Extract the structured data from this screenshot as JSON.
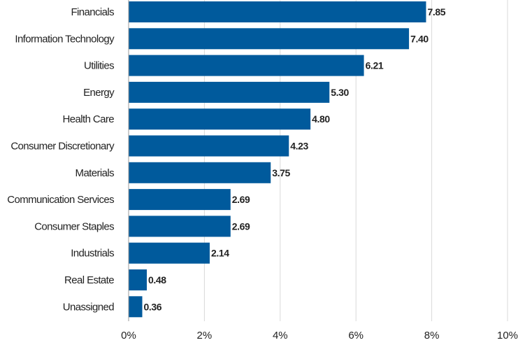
{
  "chart_data": {
    "type": "bar",
    "orientation": "horizontal",
    "categories": [
      "Financials",
      "Information Technology",
      "Utilities",
      "Energy",
      "Health Care",
      "Consumer Discretionary",
      "Materials",
      "Communication Services",
      "Consumer Staples",
      "Industrials",
      "Real Estate",
      "Unassigned"
    ],
    "values": [
      7.85,
      7.4,
      6.21,
      5.3,
      4.8,
      4.23,
      3.75,
      2.69,
      2.69,
      2.14,
      0.48,
      0.36
    ],
    "value_labels": [
      "7.85",
      "7.40",
      "6.21",
      "5.30",
      "4.80",
      "4.23",
      "3.75",
      "2.69",
      "2.69",
      "2.14",
      "0.48",
      "0.36"
    ],
    "xlim": [
      0,
      10
    ],
    "x_ticks": [
      0,
      2,
      4,
      6,
      8,
      10
    ],
    "x_tick_labels": [
      "0%",
      "2%",
      "4%",
      "6%",
      "8%",
      "10%"
    ],
    "grid": true,
    "bar_color": "#005A9C",
    "grid_color": "#D9D9D9"
  }
}
